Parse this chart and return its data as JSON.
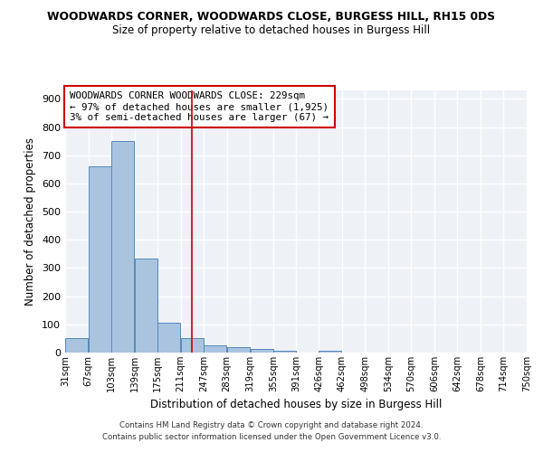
{
  "title": "WOODWARDS CORNER, WOODWARDS CLOSE, BURGESS HILL, RH15 0DS",
  "subtitle": "Size of property relative to detached houses in Burgess Hill",
  "xlabel": "Distribution of detached houses by size in Burgess Hill",
  "ylabel": "Number of detached properties",
  "footer_line1": "Contains HM Land Registry data © Crown copyright and database right 2024.",
  "footer_line2": "Contains public sector information licensed under the Open Government Licence v3.0.",
  "annotation_title": "WOODWARDS CORNER WOODWARDS CLOSE: 229sqm",
  "annotation_line1": "← 97% of detached houses are smaller (1,925)",
  "annotation_line2": "3% of semi-detached houses are larger (67) →",
  "property_size": 229,
  "bar_left_edges": [
    31,
    67,
    103,
    139,
    175,
    211,
    247,
    283,
    319,
    355,
    391,
    426,
    462,
    498,
    534,
    570,
    606,
    642,
    678,
    714
  ],
  "bar_heights": [
    50,
    660,
    750,
    335,
    105,
    50,
    25,
    20,
    12,
    8,
    0,
    8,
    0,
    0,
    0,
    0,
    0,
    0,
    0,
    0
  ],
  "bin_width": 36,
  "bar_color": "#aac4e0",
  "bar_edge_color": "#5588bb",
  "vline_color": "#cc0000",
  "vline_x": 229,
  "annotation_box_color": "#cc0000",
  "annotation_fill": "#ffffff",
  "ylim": [
    0,
    930
  ],
  "xlim": [
    31,
    750
  ],
  "ytick_interval": 100,
  "background_color": "#eef2f7",
  "grid_color": "#ffffff",
  "x_tick_labels": [
    "31sqm",
    "67sqm",
    "103sqm",
    "139sqm",
    "175sqm",
    "211sqm",
    "247sqm",
    "283sqm",
    "319sqm",
    "355sqm",
    "391sqm",
    "426sqm",
    "462sqm",
    "498sqm",
    "534sqm",
    "570sqm",
    "606sqm",
    "642sqm",
    "678sqm",
    "714sqm",
    "750sqm"
  ]
}
